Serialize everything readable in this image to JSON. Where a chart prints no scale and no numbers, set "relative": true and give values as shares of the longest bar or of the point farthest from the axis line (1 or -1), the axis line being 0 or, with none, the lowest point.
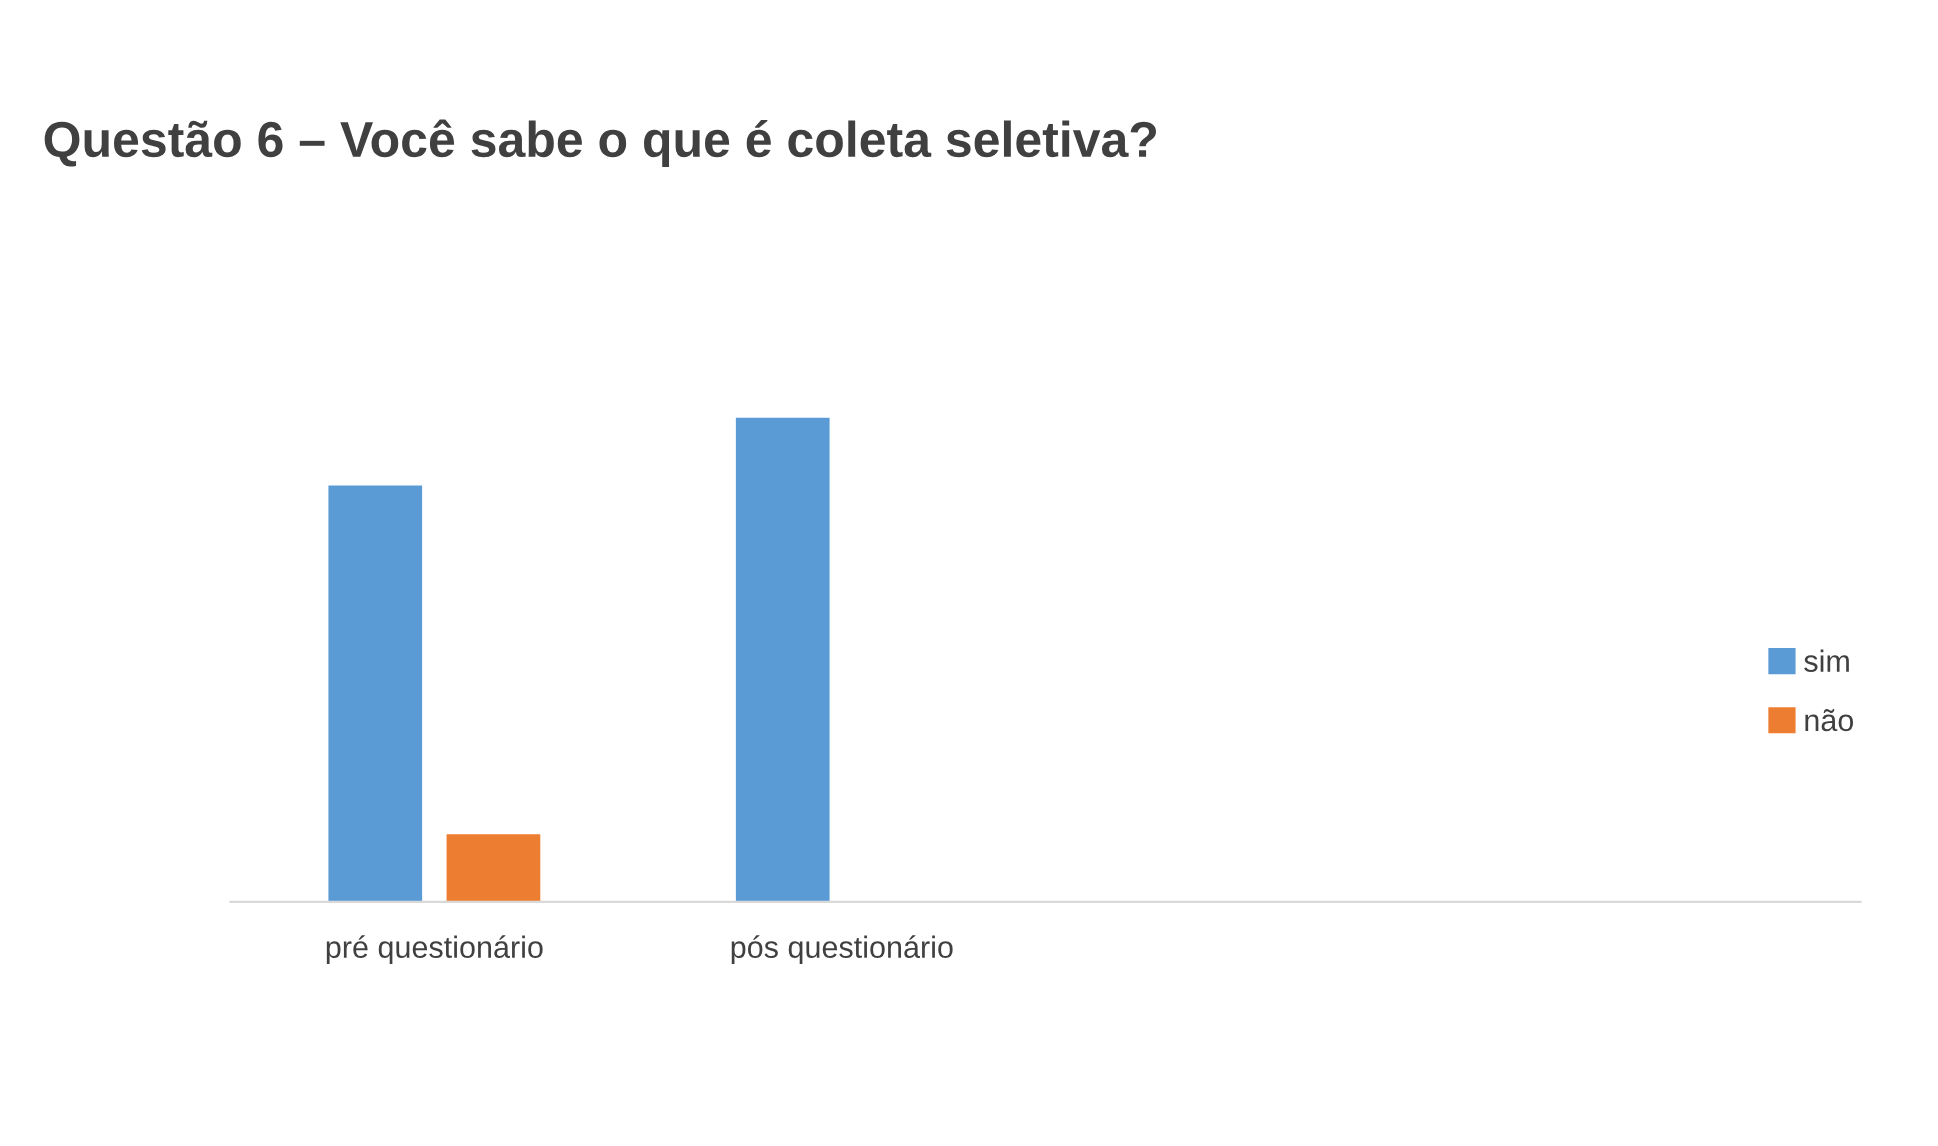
{
  "chart_data": {
    "type": "bar",
    "title": "Questão 6 – Você sabe o que é coleta seletiva?",
    "relative": true,
    "categories": [
      "pré questionário",
      "pós questionário",
      null,
      null
    ],
    "series": [
      {
        "name": "sim",
        "color": "#5b9bd5",
        "values": [
          0.86,
          1,
          null,
          null
        ]
      },
      {
        "name": "não",
        "color": "#ed7d31",
        "values": [
          0.14,
          0,
          null,
          null
        ]
      }
    ],
    "legend": "right",
    "grid": false
  }
}
